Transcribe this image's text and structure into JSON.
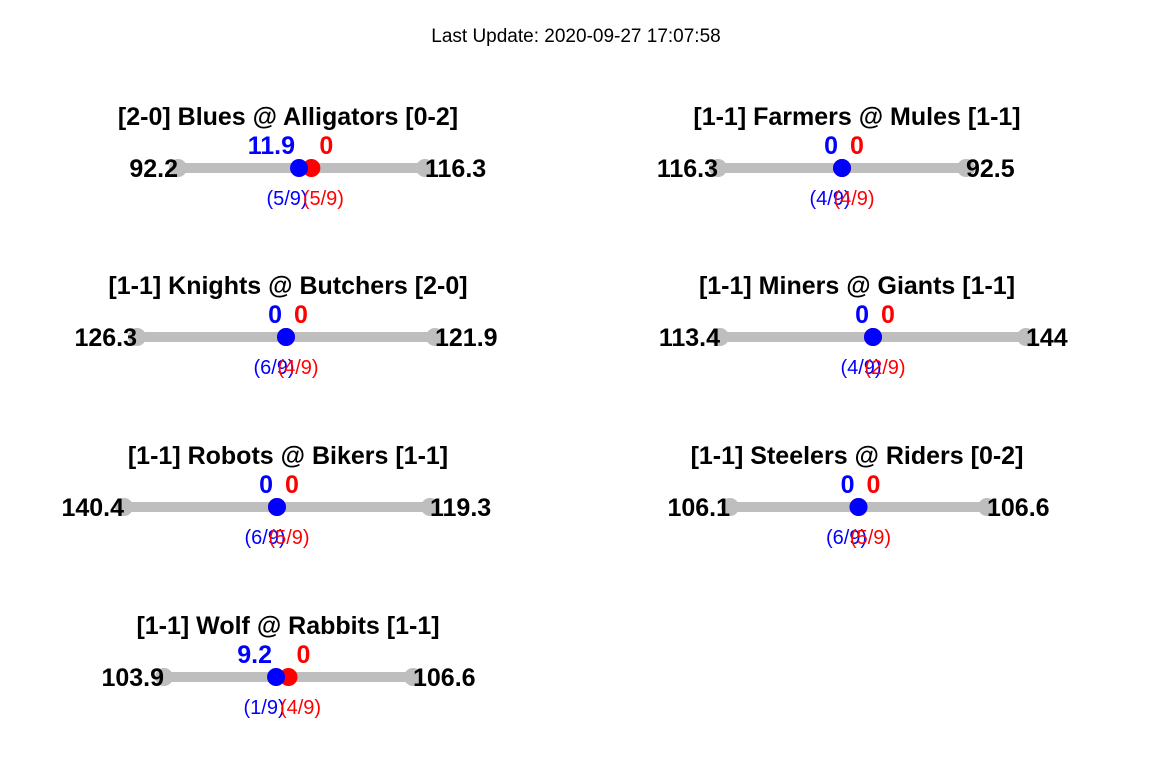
{
  "header": {
    "update_label": "Last Update:",
    "update_time": "2020-09-27 17:07:58"
  },
  "colors": {
    "away": "#0000ff",
    "home": "#ff0000",
    "track": "#bebebe",
    "text": "#000000"
  },
  "chart_data": [
    {
      "type": "scatter",
      "title": "[2-0] Blues @ Alligators [0-2]",
      "away": {
        "team": "Blues",
        "record": "2-0",
        "points": "11.9",
        "progress": "(5/9)",
        "position": 0.49
      },
      "home": {
        "team": "Alligators",
        "record": "0-2",
        "points": "0",
        "progress": "(5/9)",
        "position": 0.54
      },
      "left_total": "92.2",
      "right_total": "116.3"
    },
    {
      "type": "scatter",
      "title": "[1-1] Farmers @ Mules [1-1]",
      "away": {
        "team": "Farmers",
        "record": "1-1",
        "points": "0",
        "progress": "(4/9)",
        "position": 0.5
      },
      "home": {
        "team": "Mules",
        "record": "1-1",
        "points": "0",
        "progress": "(4/9)",
        "position": 0.5
      },
      "left_total": "116.3",
      "right_total": "92.5"
    },
    {
      "type": "scatter",
      "title": "[1-1] Knights @ Butchers [2-0]",
      "away": {
        "team": "Knights",
        "record": "1-1",
        "points": "0",
        "progress": "(6/9)",
        "position": 0.5
      },
      "home": {
        "team": "Butchers",
        "record": "2-0",
        "points": "0",
        "progress": "(4/9)",
        "position": 0.5
      },
      "left_total": "126.3",
      "right_total": "121.9"
    },
    {
      "type": "scatter",
      "title": "[1-1] Miners @ Giants [1-1]",
      "away": {
        "team": "Miners",
        "record": "1-1",
        "points": "0",
        "progress": "(4/9)",
        "position": 0.5
      },
      "home": {
        "team": "Giants",
        "record": "1-1",
        "points": "0",
        "progress": "(2/9)",
        "position": 0.5
      },
      "left_total": "113.4",
      "right_total": "144"
    },
    {
      "type": "scatter",
      "title": "[1-1] Robots @ Bikers [1-1]",
      "away": {
        "team": "Robots",
        "record": "1-1",
        "points": "0",
        "progress": "(6/9)",
        "position": 0.5
      },
      "home": {
        "team": "Bikers",
        "record": "1-1",
        "points": "0",
        "progress": "(5/9)",
        "position": 0.5
      },
      "left_total": "140.4",
      "right_total": "119.3"
    },
    {
      "type": "scatter",
      "title": "[1-1] Steelers @ Riders [0-2]",
      "away": {
        "team": "Steelers",
        "record": "1-1",
        "points": "0",
        "progress": "(6/9)",
        "position": 0.5
      },
      "home": {
        "team": "Riders",
        "record": "0-2",
        "points": "0",
        "progress": "(5/9)",
        "position": 0.5
      },
      "left_total": "106.1",
      "right_total": "106.6"
    },
    {
      "type": "scatter",
      "title": "[1-1] Wolf @ Rabbits [1-1]",
      "away": {
        "team": "Wolf",
        "record": "1-1",
        "points": "9.2",
        "progress": "(1/9)",
        "position": 0.45
      },
      "home": {
        "team": "Rabbits",
        "record": "1-1",
        "points": "0",
        "progress": "(4/9)",
        "position": 0.5
      },
      "left_total": "103.9",
      "right_total": "106.6"
    }
  ]
}
